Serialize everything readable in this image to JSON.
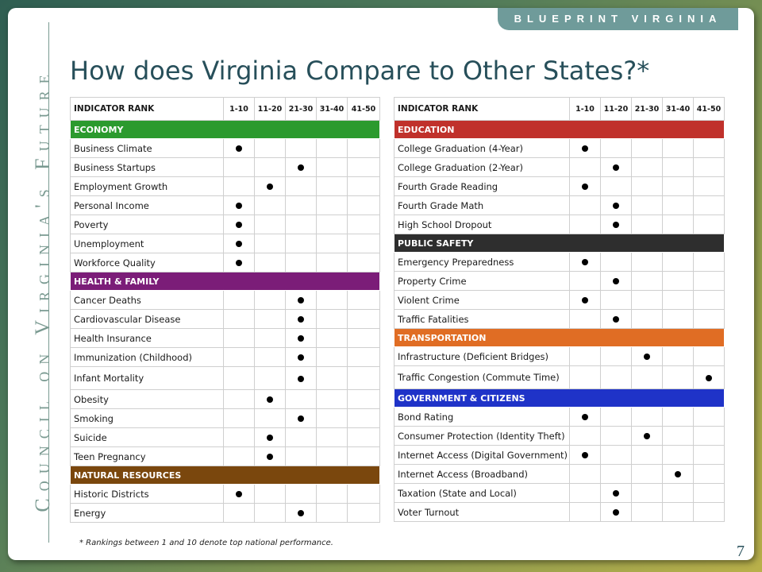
{
  "brand": "BLUEPRINT VIRGINIA",
  "sidebar_text": "Council on Virginia's Future",
  "title": "How does Virginia Compare to Other States?*",
  "colors": {
    "economy": "#2b9a2e",
    "health_family": "#7b1d78",
    "natural_resources": "#7a470d",
    "education": "#c0312b",
    "public_safety": "#2e2e2e",
    "transportation": "#e06d24",
    "government_citizens": "#1f33c8"
  },
  "left_table": {
    "header": [
      "INDICATOR RANK",
      "1-10",
      "11-20",
      "21-30",
      "31-40",
      "41-50"
    ],
    "sections": [
      {
        "name": "ECONOMY",
        "color_key": "economy",
        "rows": [
          {
            "label": "Business Climate",
            "rank_col": 1
          },
          {
            "label": "Business Startups",
            "rank_col": 3
          },
          {
            "label": "Employment Growth",
            "rank_col": 2
          },
          {
            "label": "Personal Income",
            "rank_col": 1
          },
          {
            "label": "Poverty",
            "rank_col": 1
          },
          {
            "label": "Unemployment",
            "rank_col": 1
          },
          {
            "label": "Workforce Quality",
            "rank_col": 1
          }
        ]
      },
      {
        "name": "HEALTH & FAMILY",
        "color_key": "health_family",
        "rows": [
          {
            "label": "Cancer Deaths",
            "rank_col": 3
          },
          {
            "label": "Cardiovascular Disease",
            "rank_col": 3
          },
          {
            "label": "Health Insurance",
            "rank_col": 3
          },
          {
            "label": "Immunization (Childhood)",
            "rank_col": 3
          },
          {
            "label": "Infant Mortality",
            "rank_col": 3,
            "tall": true
          },
          {
            "label": "Obesity",
            "rank_col": 2
          },
          {
            "label": "Smoking",
            "rank_col": 3
          },
          {
            "label": "Suicide",
            "rank_col": 2
          },
          {
            "label": "Teen Pregnancy",
            "rank_col": 2
          }
        ]
      },
      {
        "name": "NATURAL RESOURCES",
        "color_key": "natural_resources",
        "rows": [
          {
            "label": "Historic Districts",
            "rank_col": 1
          },
          {
            "label": "Energy",
            "rank_col": 3
          }
        ]
      }
    ]
  },
  "right_table": {
    "header": [
      "INDICATOR RANK",
      "1-10",
      "11-20",
      "21-30",
      "31-40",
      "41-50"
    ],
    "sections": [
      {
        "name": "EDUCATION",
        "color_key": "education",
        "rows": [
          {
            "label": "College Graduation (4-Year)",
            "rank_col": 1
          },
          {
            "label": "College Graduation (2-Year)",
            "rank_col": 2
          },
          {
            "label": "Fourth Grade Reading",
            "rank_col": 1
          },
          {
            "label": "Fourth Grade Math",
            "rank_col": 2
          },
          {
            "label": "High School Dropout",
            "rank_col": 2
          }
        ]
      },
      {
        "name": "PUBLIC SAFETY",
        "color_key": "public_safety",
        "rows": [
          {
            "label": "Emergency Preparedness",
            "rank_col": 1
          },
          {
            "label": "Property Crime",
            "rank_col": 2
          },
          {
            "label": "Violent Crime",
            "rank_col": 1
          },
          {
            "label": "Traffic Fatalities",
            "rank_col": 2
          }
        ]
      },
      {
        "name": "TRANSPORTATION",
        "color_key": "transportation",
        "rows": [
          {
            "label": "Infrastructure (Deficient Bridges)",
            "rank_col": 3
          },
          {
            "label": "Traffic Congestion (Commute Time)",
            "rank_col": 5,
            "tall": true
          }
        ]
      },
      {
        "name": "GOVERNMENT & CITIZENS",
        "color_key": "government_citizens",
        "rows": [
          {
            "label": "Bond Rating",
            "rank_col": 1
          },
          {
            "label": "Consumer Protection (Identity Theft)",
            "rank_col": 3
          },
          {
            "label": "Internet Access (Digital Government)",
            "rank_col": 1
          },
          {
            "label": "Internet Access (Broadband)",
            "rank_col": 4
          },
          {
            "label": "Taxation (State and Local)",
            "rank_col": 2
          },
          {
            "label": "Voter Turnout",
            "rank_col": 2
          }
        ]
      }
    ]
  },
  "footnote": "* Rankings between 1 and 10 denote top national performance.",
  "page_number": "7"
}
